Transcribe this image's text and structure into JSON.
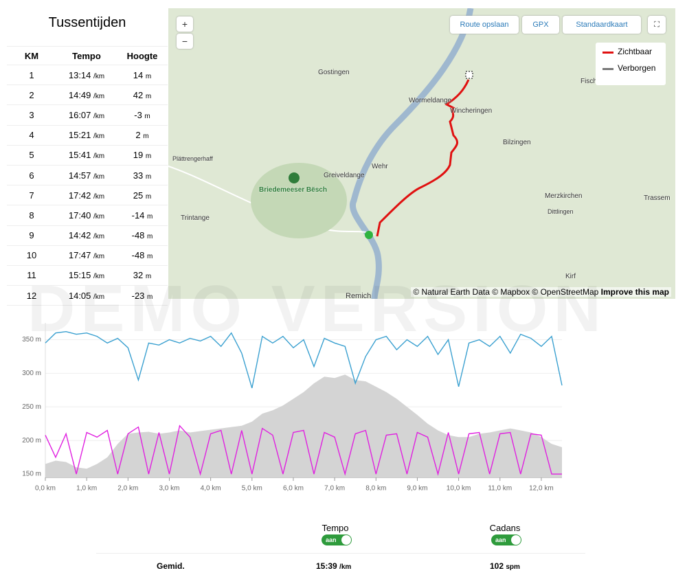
{
  "splits": {
    "title": "Tussentijden",
    "headers": [
      "KM",
      "Tempo",
      "Hoogte"
    ],
    "rows": [
      [
        "1",
        "13:14",
        "/km",
        "14",
        "m"
      ],
      [
        "2",
        "14:49",
        "/km",
        "42",
        "m"
      ],
      [
        "3",
        "16:07",
        "/km",
        "-3",
        "m"
      ],
      [
        "4",
        "15:21",
        "/km",
        "2",
        "m"
      ],
      [
        "5",
        "15:41",
        "/km",
        "19",
        "m"
      ],
      [
        "6",
        "14:57",
        "/km",
        "33",
        "m"
      ],
      [
        "7",
        "17:42",
        "/km",
        "25",
        "m"
      ],
      [
        "8",
        "17:40",
        "/km",
        "-14",
        "m"
      ],
      [
        "9",
        "14:42",
        "/km",
        "-48",
        "m"
      ],
      [
        "10",
        "17:47",
        "/km",
        "-48",
        "m"
      ],
      [
        "11",
        "15:15",
        "/km",
        "32",
        "m"
      ],
      [
        "12",
        "14:05",
        "/km",
        "-23",
        "m"
      ]
    ]
  },
  "map": {
    "zoom_in": "+",
    "zoom_out": "−",
    "save_route": "Route opslaan",
    "gpx": "GPX",
    "map_style": "Standaardkaart",
    "legend": [
      "Zichtbaar",
      "Verborgen"
    ],
    "attribution": "© Natural Earth Data © Mapbox © OpenStreetMap",
    "improve": "Improve this map",
    "places": [
      "Gostingen",
      "Wormeldange",
      "Wincheringen",
      "Fisch",
      "Bilzingen",
      "Wehr",
      "Greiveldange",
      "Briedemeeser Bësch",
      "Merzkirchen",
      "Trassem",
      "Dittlingen",
      "Trintange",
      "Plättrengerhaff",
      "Remich",
      "Kirf"
    ]
  },
  "watermark": "DEMO VERSION",
  "chart_data": {
    "type": "line",
    "x": [
      0,
      0.25,
      0.5,
      0.75,
      1,
      1.25,
      1.5,
      1.75,
      2,
      2.25,
      2.5,
      2.75,
      3,
      3.25,
      3.5,
      3.75,
      4,
      4.25,
      4.5,
      4.75,
      5,
      5.25,
      5.5,
      5.75,
      6,
      6.25,
      6.5,
      6.75,
      7,
      7.25,
      7.5,
      7.75,
      8,
      8.25,
      8.5,
      8.75,
      9,
      9.25,
      9.5,
      9.75,
      10,
      10.25,
      10.5,
      10.75,
      11,
      11.25,
      11.5,
      11.75,
      12,
      12.25,
      12.5
    ],
    "series": [
      {
        "name": "Tempo",
        "color": "#3aa0d0",
        "values": [
          345,
          360,
          362,
          358,
          360,
          355,
          345,
          352,
          338,
          290,
          345,
          342,
          350,
          345,
          352,
          348,
          355,
          340,
          360,
          330,
          278,
          355,
          345,
          355,
          338,
          350,
          310,
          352,
          345,
          340,
          285,
          325,
          350,
          355,
          335,
          350,
          340,
          355,
          328,
          350,
          280,
          345,
          350,
          340,
          355,
          330,
          358,
          352,
          340,
          355,
          282
        ]
      },
      {
        "name": "Cadans",
        "color": "#e020e0",
        "values": [
          208,
          175,
          210,
          150,
          212,
          205,
          215,
          150,
          210,
          220,
          150,
          212,
          150,
          222,
          205,
          150,
          210,
          215,
          150,
          215,
          150,
          218,
          208,
          150,
          212,
          215,
          150,
          212,
          205,
          150,
          210,
          215,
          150,
          208,
          210,
          150,
          212,
          205,
          150,
          212,
          150,
          210,
          212,
          150,
          210,
          212,
          150,
          210,
          208,
          150,
          150
        ]
      }
    ],
    "area": {
      "color": "#d4d4d4",
      "values": [
        165,
        170,
        168,
        160,
        158,
        165,
        175,
        195,
        210,
        212,
        213,
        210,
        212,
        215,
        212,
        214,
        216,
        218,
        220,
        222,
        228,
        240,
        245,
        252,
        262,
        272,
        285,
        295,
        293,
        298,
        290,
        288,
        280,
        272,
        262,
        250,
        238,
        225,
        215,
        208,
        205,
        205,
        210,
        212,
        215,
        218,
        215,
        212,
        205,
        195,
        190
      ]
    },
    "xlim": [
      0,
      12.5
    ],
    "ylim": [
      145,
      375
    ],
    "xticks": [
      {
        "value": 0,
        "label": "0,0 km"
      },
      {
        "value": 1,
        "label": "1,0 km"
      },
      {
        "value": 2,
        "label": "2,0 km"
      },
      {
        "value": 3,
        "label": "3,0 km"
      },
      {
        "value": 4,
        "label": "4,0 km"
      },
      {
        "value": 5,
        "label": "5,0 km"
      },
      {
        "value": 6,
        "label": "6,0 km"
      },
      {
        "value": 7,
        "label": "7,0 km"
      },
      {
        "value": 8,
        "label": "8,0 km"
      },
      {
        "value": 9,
        "label": "9,0 km"
      },
      {
        "value": 10,
        "label": "10,0 km"
      },
      {
        "value": 11,
        "label": "11,0 km"
      },
      {
        "value": 12,
        "label": "12,0 km"
      }
    ],
    "yticks": [
      {
        "value": 150,
        "label": "150 m"
      },
      {
        "value": 200,
        "label": "200 m"
      },
      {
        "value": 250,
        "label": "250 m"
      },
      {
        "value": 300,
        "label": "300 m"
      },
      {
        "value": 350,
        "label": "350 m"
      }
    ],
    "grid": true
  },
  "summary": {
    "toggle": "aan",
    "row_label": "Gemid.",
    "tempo": "15:39",
    "tempo_unit": "/km",
    "cadence": "102",
    "cadence_unit": "spm"
  }
}
